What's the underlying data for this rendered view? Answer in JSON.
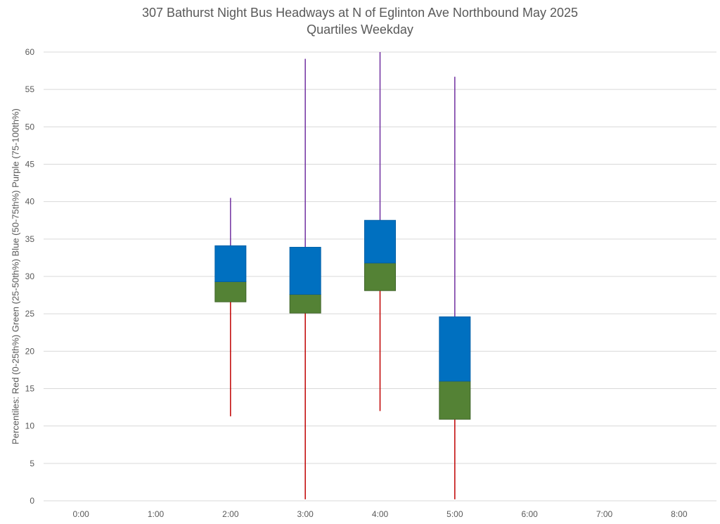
{
  "chart_data": {
    "type": "box",
    "title": "307 Bathurst Night Bus Headways at N of Eglinton Ave Northbound May 2025",
    "subtitle": "Quartiles Weekday",
    "xlabel": "",
    "ylabel": "Percentiles:  Red (0-25th%)  Green (25-50th%)  Blue (50-75th%)  Purple (75-100th%)",
    "ylim": [
      0,
      60
    ],
    "yticks": [
      0,
      5,
      10,
      15,
      20,
      25,
      30,
      35,
      40,
      45,
      50,
      55,
      60
    ],
    "categories": [
      "0:00",
      "1:00",
      "2:00",
      "3:00",
      "4:00",
      "5:00",
      "6:00",
      "7:00",
      "8:00"
    ],
    "grid": true,
    "colors": {
      "q1_whisker": "#c00000",
      "q2_box": "#548235",
      "q3_box": "#0070c0",
      "q4_whisker": "#7030a0",
      "grid": "#d9d9d9",
      "text": "#595959"
    },
    "boxes": [
      {
        "x": "2:00",
        "min": 11.3,
        "q1": 26.6,
        "median": 29.3,
        "q3": 34.1,
        "max": 40.5
      },
      {
        "x": "3:00",
        "min": 0.2,
        "q1": 25.1,
        "median": 27.6,
        "q3": 33.9,
        "max": 59.1
      },
      {
        "x": "4:00",
        "min": 12.0,
        "q1": 28.1,
        "median": 31.8,
        "q3": 37.5,
        "max": 60.0
      },
      {
        "x": "5:00",
        "min": 0.2,
        "q1": 10.9,
        "median": 16.0,
        "q3": 24.6,
        "max": 56.7
      }
    ]
  }
}
